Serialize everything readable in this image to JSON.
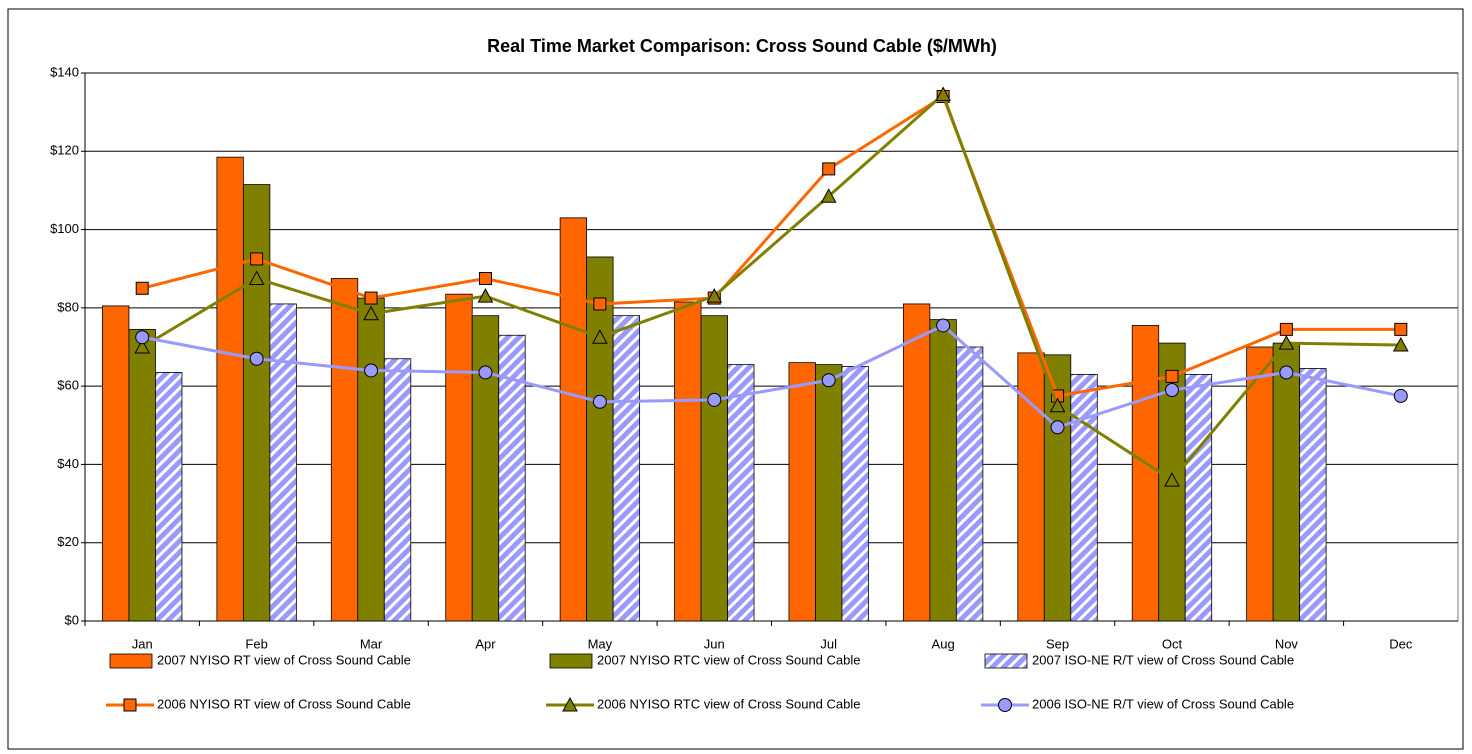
{
  "chart_data": {
    "type": "bar",
    "title": "Real Time Market Comparison: Cross Sound Cable ($/MWh)",
    "categories": [
      "Jan",
      "Feb",
      "Mar",
      "Apr",
      "May",
      "Jun",
      "Jul",
      "Aug",
      "Sep",
      "Oct",
      "Nov",
      "Dec"
    ],
    "ylim": [
      0,
      140
    ],
    "yticks": [
      {
        "value": 0,
        "label": "$0"
      },
      {
        "value": 20,
        "label": "$20"
      },
      {
        "value": 40,
        "label": "$40"
      },
      {
        "value": 60,
        "label": "$60"
      },
      {
        "value": 80,
        "label": "$80"
      },
      {
        "value": 100,
        "label": "$100"
      },
      {
        "value": 120,
        "label": "$120"
      },
      {
        "value": 140,
        "label": "$140"
      }
    ],
    "grid": true,
    "series": [
      {
        "name": "2007 NYISO RT view of Cross Sound Cable",
        "type": "bar",
        "color": "#ff6600",
        "values": [
          80.5,
          118.5,
          87.5,
          83.5,
          103,
          81.5,
          66,
          81,
          68.5,
          75.5,
          70,
          null
        ]
      },
      {
        "name": "2007 NYISO RTC view of Cross Sound Cable",
        "type": "bar",
        "color": "#808000",
        "values": [
          74.5,
          111.5,
          82.5,
          78,
          93,
          78,
          65.5,
          77,
          68,
          71,
          71,
          null
        ]
      },
      {
        "name": "2007 ISO-NE R/T view of Cross Sound Cable",
        "type": "bar",
        "color": "#9999ff",
        "pattern": "hatch",
        "values": [
          63.5,
          81,
          67,
          73,
          78,
          65.5,
          65,
          70,
          63,
          63,
          64.5,
          null
        ]
      },
      {
        "name": "2006 NYISO RT view of Cross Sound Cable",
        "type": "line",
        "color": "#ff6600",
        "marker": "square",
        "values": [
          85,
          92.5,
          82.5,
          87.5,
          81,
          82.5,
          115.5,
          134,
          57.5,
          62.5,
          74.5,
          74.5
        ]
      },
      {
        "name": "2006 NYISO RTC view of Cross Sound Cable",
        "type": "line",
        "color": "#808000",
        "marker": "triangle",
        "values": [
          70,
          87.5,
          78.5,
          83,
          72.5,
          83,
          108.5,
          134.5,
          55,
          36,
          71,
          70.5
        ]
      },
      {
        "name": "2006 ISO-NE R/T view of Cross Sound Cable",
        "type": "line",
        "color": "#9999ff",
        "marker": "circle",
        "values": [
          72.5,
          67,
          64,
          63.5,
          56,
          56.5,
          61.5,
          75.5,
          49.5,
          59,
          63.5,
          57.5
        ]
      }
    ]
  }
}
